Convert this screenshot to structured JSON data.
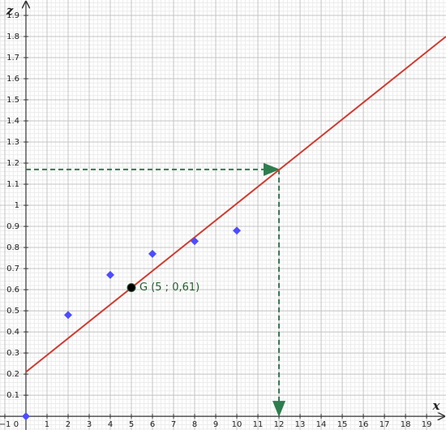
{
  "chart_data": {
    "type": "scatter",
    "x_label": "x",
    "y_label": "z",
    "xlim": [
      -1.23,
      19.92
    ],
    "ylim": [
      -0.065,
      1.973
    ],
    "xticks": [
      {
        "value": -1,
        "label": "−1"
      },
      0,
      1,
      2,
      3,
      4,
      5,
      6,
      7,
      8,
      9,
      10,
      11,
      12,
      13,
      14,
      15,
      16,
      17,
      18,
      19
    ],
    "yticks": [
      0.1,
      0.2,
      0.3,
      0.4,
      0.5,
      0.6,
      0.7,
      0.8,
      0.9,
      1,
      1.1,
      1.2,
      1.3,
      1.4,
      1.5,
      1.6,
      1.7,
      1.8,
      1.9
    ],
    "grid": true,
    "series": [
      {
        "type": "scatter",
        "color": "#4d4dff",
        "x": [
          0,
          2,
          4,
          6,
          8,
          10
        ],
        "values": [
          0,
          0.48,
          0.67,
          0.77,
          0.83,
          0.88
        ]
      },
      {
        "type": "line",
        "color": "#d03a2f",
        "x": [
          0,
          19.92
        ],
        "values": [
          0.21,
          1.8
        ]
      }
    ],
    "point": {
      "label": "G (5 ; 0,61)",
      "x": 5,
      "value": 0.61,
      "color": "#000000"
    },
    "projection": {
      "x": 12,
      "value": 1.17,
      "color": "#2e7d4f"
    }
  }
}
